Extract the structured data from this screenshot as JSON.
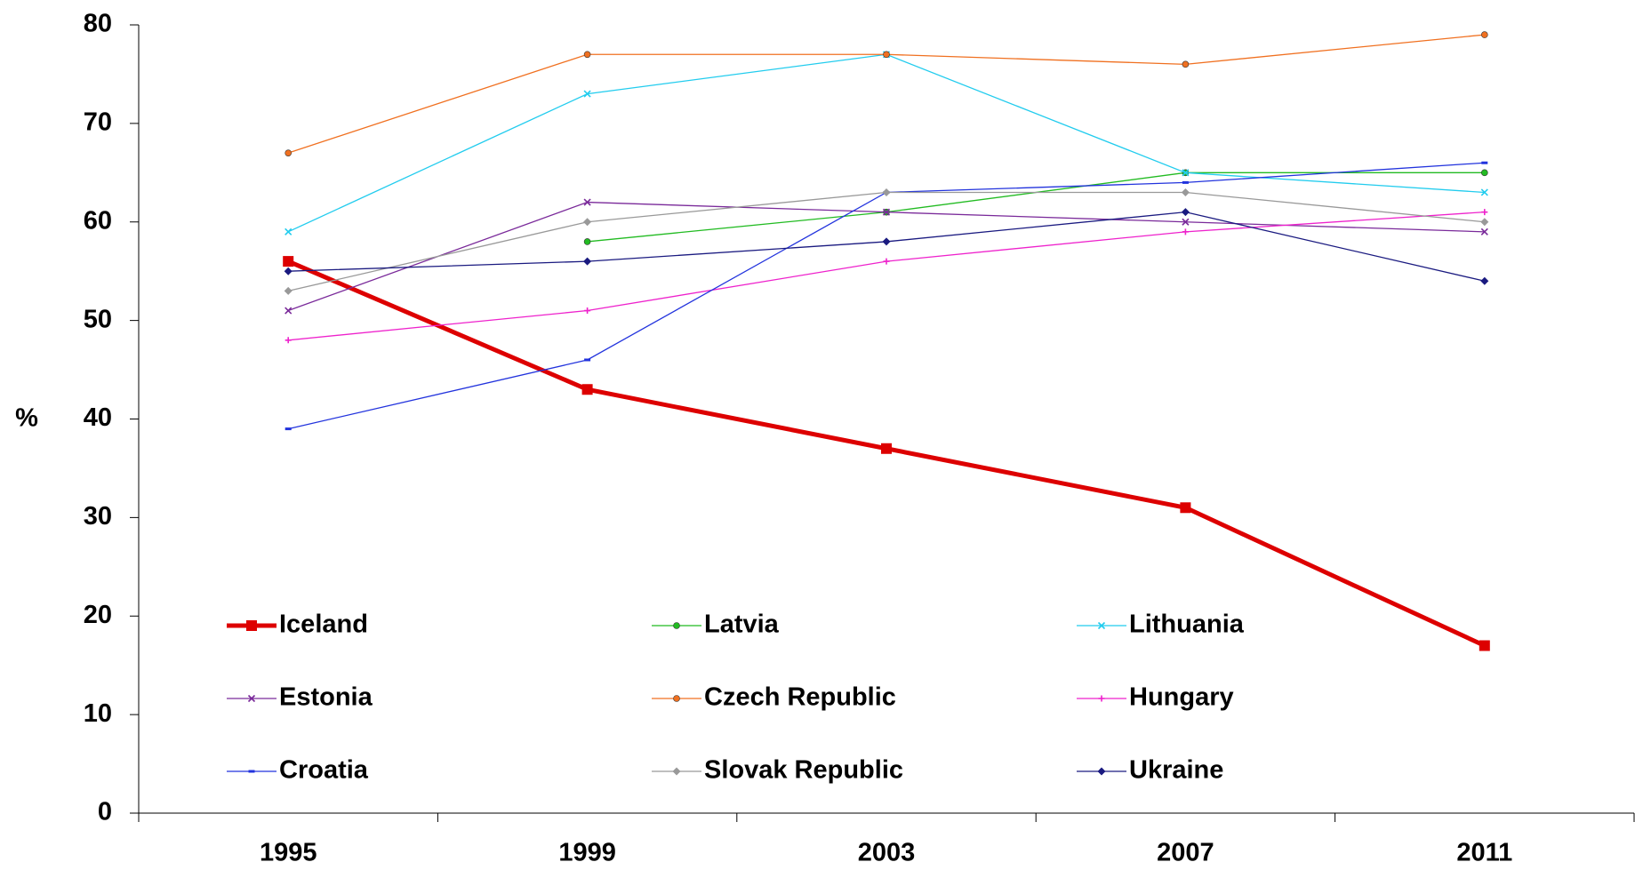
{
  "chart_data": {
    "type": "line",
    "y_label": "%",
    "categories": [
      "1995",
      "1999",
      "2003",
      "2007",
      "2011"
    ],
    "ylim": [
      0,
      80
    ],
    "yticks": [
      0,
      10,
      20,
      30,
      40,
      50,
      60,
      70,
      80
    ],
    "grid": false,
    "legend": "lower center",
    "series": [
      {
        "name": "Iceland",
        "color": "#dd0000",
        "marker": "square",
        "width": 5,
        "values": [
          56,
          43,
          37,
          31,
          17
        ]
      },
      {
        "name": "Latvia",
        "color": "#22bb22",
        "marker": "circle",
        "width": 1.3,
        "values": [
          null,
          58,
          61,
          65,
          65
        ]
      },
      {
        "name": "Lithuania",
        "color": "#22ccee",
        "marker": "x",
        "width": 1.3,
        "values": [
          59,
          73,
          77,
          65,
          63
        ]
      },
      {
        "name": "Estonia",
        "color": "#7a2a9a",
        "marker": "x",
        "width": 1.3,
        "values": [
          51,
          62,
          61,
          60,
          59
        ]
      },
      {
        "name": "Czech Republic",
        "color": "#f07020",
        "marker": "circle",
        "width": 1.3,
        "values": [
          67,
          77,
          77,
          76,
          79
        ]
      },
      {
        "name": "Hungary",
        "color": "#ee22cc",
        "marker": "plus",
        "width": 1.3,
        "values": [
          48,
          51,
          56,
          59,
          61
        ]
      },
      {
        "name": "Croatia",
        "color": "#2233dd",
        "marker": "dash",
        "width": 1.3,
        "values": [
          39,
          46,
          63,
          64,
          66
        ]
      },
      {
        "name": "Slovak Republic",
        "color": "#999999",
        "marker": "diamond",
        "width": 1.3,
        "values": [
          53,
          60,
          63,
          63,
          60
        ]
      },
      {
        "name": "Ukraine",
        "color": "#1a1a80",
        "marker": "diamond",
        "width": 1.3,
        "values": [
          55,
          56,
          58,
          61,
          54
        ]
      }
    ]
  }
}
